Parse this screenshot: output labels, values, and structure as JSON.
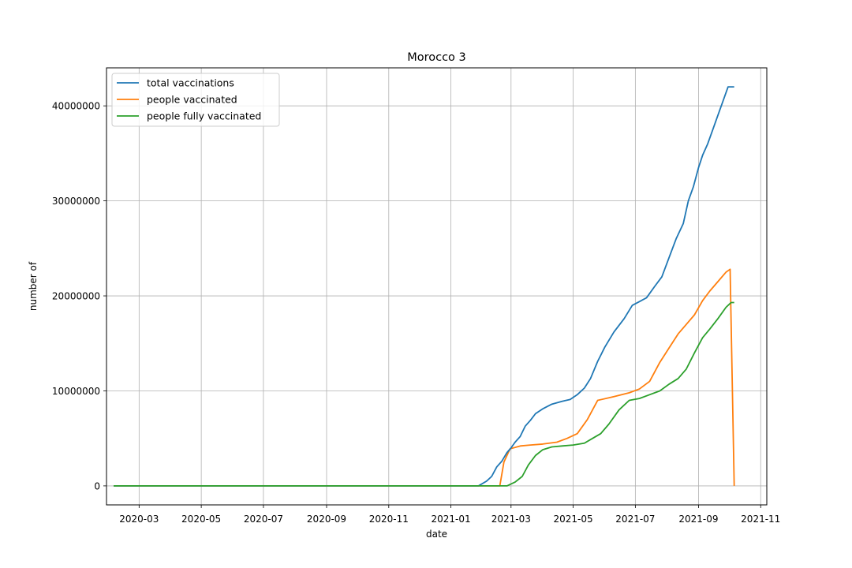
{
  "chart_data": {
    "type": "line",
    "title": "Morocco 3",
    "xlabel": "date",
    "ylabel": "number of",
    "xlim": [
      "2020-01-29",
      "2021-11-07"
    ],
    "ylim": [
      -2000000,
      44000000
    ],
    "grid": true,
    "legend_position": "top-left",
    "x_ticks": [
      "2020-03",
      "2020-05",
      "2020-07",
      "2020-09",
      "2020-11",
      "2021-01",
      "2021-03",
      "2021-05",
      "2021-07",
      "2021-09",
      "2021-11"
    ],
    "y_ticks": [
      0,
      10000000,
      20000000,
      30000000,
      40000000
    ],
    "y_tick_labels": [
      "0",
      "10000000",
      "20000000",
      "30000000",
      "40000000"
    ],
    "colors": {
      "total_vaccinations": "#1f77b4",
      "people_vaccinated": "#ff7f0e",
      "people_fully_vaccinated": "#2ca02c",
      "grid": "#b0b0b0"
    },
    "series": [
      {
        "name": "total vaccinations",
        "points": [
          [
            "2020-02-05",
            0
          ],
          [
            "2021-01-28",
            0
          ],
          [
            "2021-02-05",
            500000
          ],
          [
            "2021-02-10",
            1000000
          ],
          [
            "2021-02-15",
            2000000
          ],
          [
            "2021-02-20",
            2600000
          ],
          [
            "2021-02-25",
            3500000
          ],
          [
            "2021-03-01",
            4000000
          ],
          [
            "2021-03-05",
            4600000
          ],
          [
            "2021-03-10",
            5200000
          ],
          [
            "2021-03-15",
            6300000
          ],
          [
            "2021-03-20",
            6900000
          ],
          [
            "2021-03-25",
            7600000
          ],
          [
            "2021-04-01",
            8100000
          ],
          [
            "2021-04-10",
            8600000
          ],
          [
            "2021-04-20",
            8900000
          ],
          [
            "2021-04-28",
            9100000
          ],
          [
            "2021-05-05",
            9600000
          ],
          [
            "2021-05-12",
            10300000
          ],
          [
            "2021-05-18",
            11300000
          ],
          [
            "2021-05-25",
            13100000
          ],
          [
            "2021-06-01",
            14600000
          ],
          [
            "2021-06-10",
            16200000
          ],
          [
            "2021-06-20",
            17600000
          ],
          [
            "2021-06-28",
            19000000
          ],
          [
            "2021-07-05",
            19400000
          ],
          [
            "2021-07-12",
            19800000
          ],
          [
            "2021-07-20",
            21000000
          ],
          [
            "2021-07-27",
            22000000
          ],
          [
            "2021-08-03",
            24000000
          ],
          [
            "2021-08-10",
            26000000
          ],
          [
            "2021-08-17",
            27600000
          ],
          [
            "2021-08-22",
            30000000
          ],
          [
            "2021-08-27",
            31500000
          ],
          [
            "2021-09-01",
            33500000
          ],
          [
            "2021-09-05",
            34800000
          ],
          [
            "2021-09-10",
            36000000
          ],
          [
            "2021-09-15",
            37500000
          ],
          [
            "2021-09-20",
            39000000
          ],
          [
            "2021-09-25",
            40500000
          ],
          [
            "2021-09-30",
            42000000
          ],
          [
            "2021-10-06",
            42000000
          ]
        ]
      },
      {
        "name": "people vaccinated",
        "points": [
          [
            "2020-02-05",
            0
          ],
          [
            "2021-02-18",
            0
          ],
          [
            "2021-02-22",
            2500000
          ],
          [
            "2021-02-28",
            3900000
          ],
          [
            "2021-03-10",
            4200000
          ],
          [
            "2021-03-20",
            4300000
          ],
          [
            "2021-04-01",
            4400000
          ],
          [
            "2021-04-15",
            4600000
          ],
          [
            "2021-04-25",
            5000000
          ],
          [
            "2021-05-05",
            5500000
          ],
          [
            "2021-05-15",
            7000000
          ],
          [
            "2021-05-25",
            9000000
          ],
          [
            "2021-06-10",
            9400000
          ],
          [
            "2021-06-25",
            9800000
          ],
          [
            "2021-07-05",
            10200000
          ],
          [
            "2021-07-15",
            11000000
          ],
          [
            "2021-07-25",
            13000000
          ],
          [
            "2021-08-03",
            14500000
          ],
          [
            "2021-08-12",
            16000000
          ],
          [
            "2021-08-20",
            17000000
          ],
          [
            "2021-08-28",
            18000000
          ],
          [
            "2021-09-05",
            19500000
          ],
          [
            "2021-09-12",
            20500000
          ],
          [
            "2021-09-20",
            21500000
          ],
          [
            "2021-09-28",
            22500000
          ],
          [
            "2021-10-02",
            22800000
          ],
          [
            "2021-10-06",
            0
          ]
        ]
      },
      {
        "name": "people fully vaccinated",
        "points": [
          [
            "2020-02-05",
            0
          ],
          [
            "2021-02-25",
            0
          ],
          [
            "2021-03-05",
            400000
          ],
          [
            "2021-03-12",
            1000000
          ],
          [
            "2021-03-18",
            2200000
          ],
          [
            "2021-03-25",
            3200000
          ],
          [
            "2021-04-01",
            3800000
          ],
          [
            "2021-04-10",
            4100000
          ],
          [
            "2021-04-20",
            4200000
          ],
          [
            "2021-05-01",
            4300000
          ],
          [
            "2021-05-12",
            4500000
          ],
          [
            "2021-05-20",
            5000000
          ],
          [
            "2021-05-28",
            5500000
          ],
          [
            "2021-06-05",
            6500000
          ],
          [
            "2021-06-15",
            8000000
          ],
          [
            "2021-06-25",
            9000000
          ],
          [
            "2021-07-05",
            9200000
          ],
          [
            "2021-07-15",
            9600000
          ],
          [
            "2021-07-25",
            10000000
          ],
          [
            "2021-08-03",
            10700000
          ],
          [
            "2021-08-12",
            11300000
          ],
          [
            "2021-08-20",
            12300000
          ],
          [
            "2021-08-28",
            14000000
          ],
          [
            "2021-09-05",
            15600000
          ],
          [
            "2021-09-12",
            16500000
          ],
          [
            "2021-09-20",
            17600000
          ],
          [
            "2021-09-28",
            18800000
          ],
          [
            "2021-10-03",
            19300000
          ],
          [
            "2021-10-06",
            19300000
          ]
        ]
      }
    ]
  }
}
